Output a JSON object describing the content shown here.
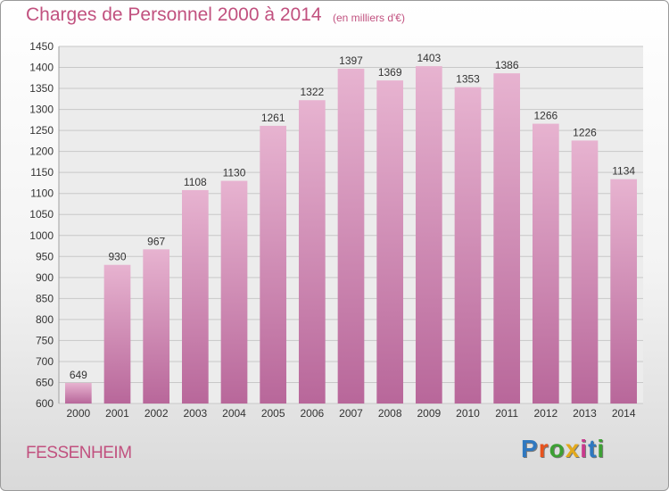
{
  "chart_data": {
    "type": "bar",
    "title": "Charges de Personnel 2000 à 2014",
    "subtitle": "(en milliers d'€)",
    "categories": [
      "2000",
      "2001",
      "2002",
      "2003",
      "2004",
      "2005",
      "2006",
      "2007",
      "2008",
      "2009",
      "2010",
      "2011",
      "2012",
      "2013",
      "2014"
    ],
    "values": [
      649,
      930,
      967,
      1108,
      1130,
      1261,
      1322,
      1397,
      1369,
      1403,
      1353,
      1386,
      1266,
      1226,
      1134
    ],
    "ylim": [
      600,
      1450
    ],
    "yticks": [
      600,
      650,
      700,
      750,
      800,
      850,
      900,
      950,
      1000,
      1050,
      1100,
      1150,
      1200,
      1250,
      1300,
      1350,
      1400,
      1450
    ],
    "xlabel": "",
    "ylabel": "",
    "grid": true,
    "bar_color": "#d68fb5",
    "grid_color": "#c8c8c8"
  },
  "footer": {
    "town": "FESSENHEIM",
    "logo_letters": [
      "P",
      "r",
      "o",
      "x",
      "i",
      "t",
      "i"
    ],
    "logo_colors": [
      "#2f78c0",
      "#e8531d",
      "#3da034",
      "#e3a91c",
      "#c83a8c",
      "#2f78c0",
      "#3da034"
    ]
  }
}
